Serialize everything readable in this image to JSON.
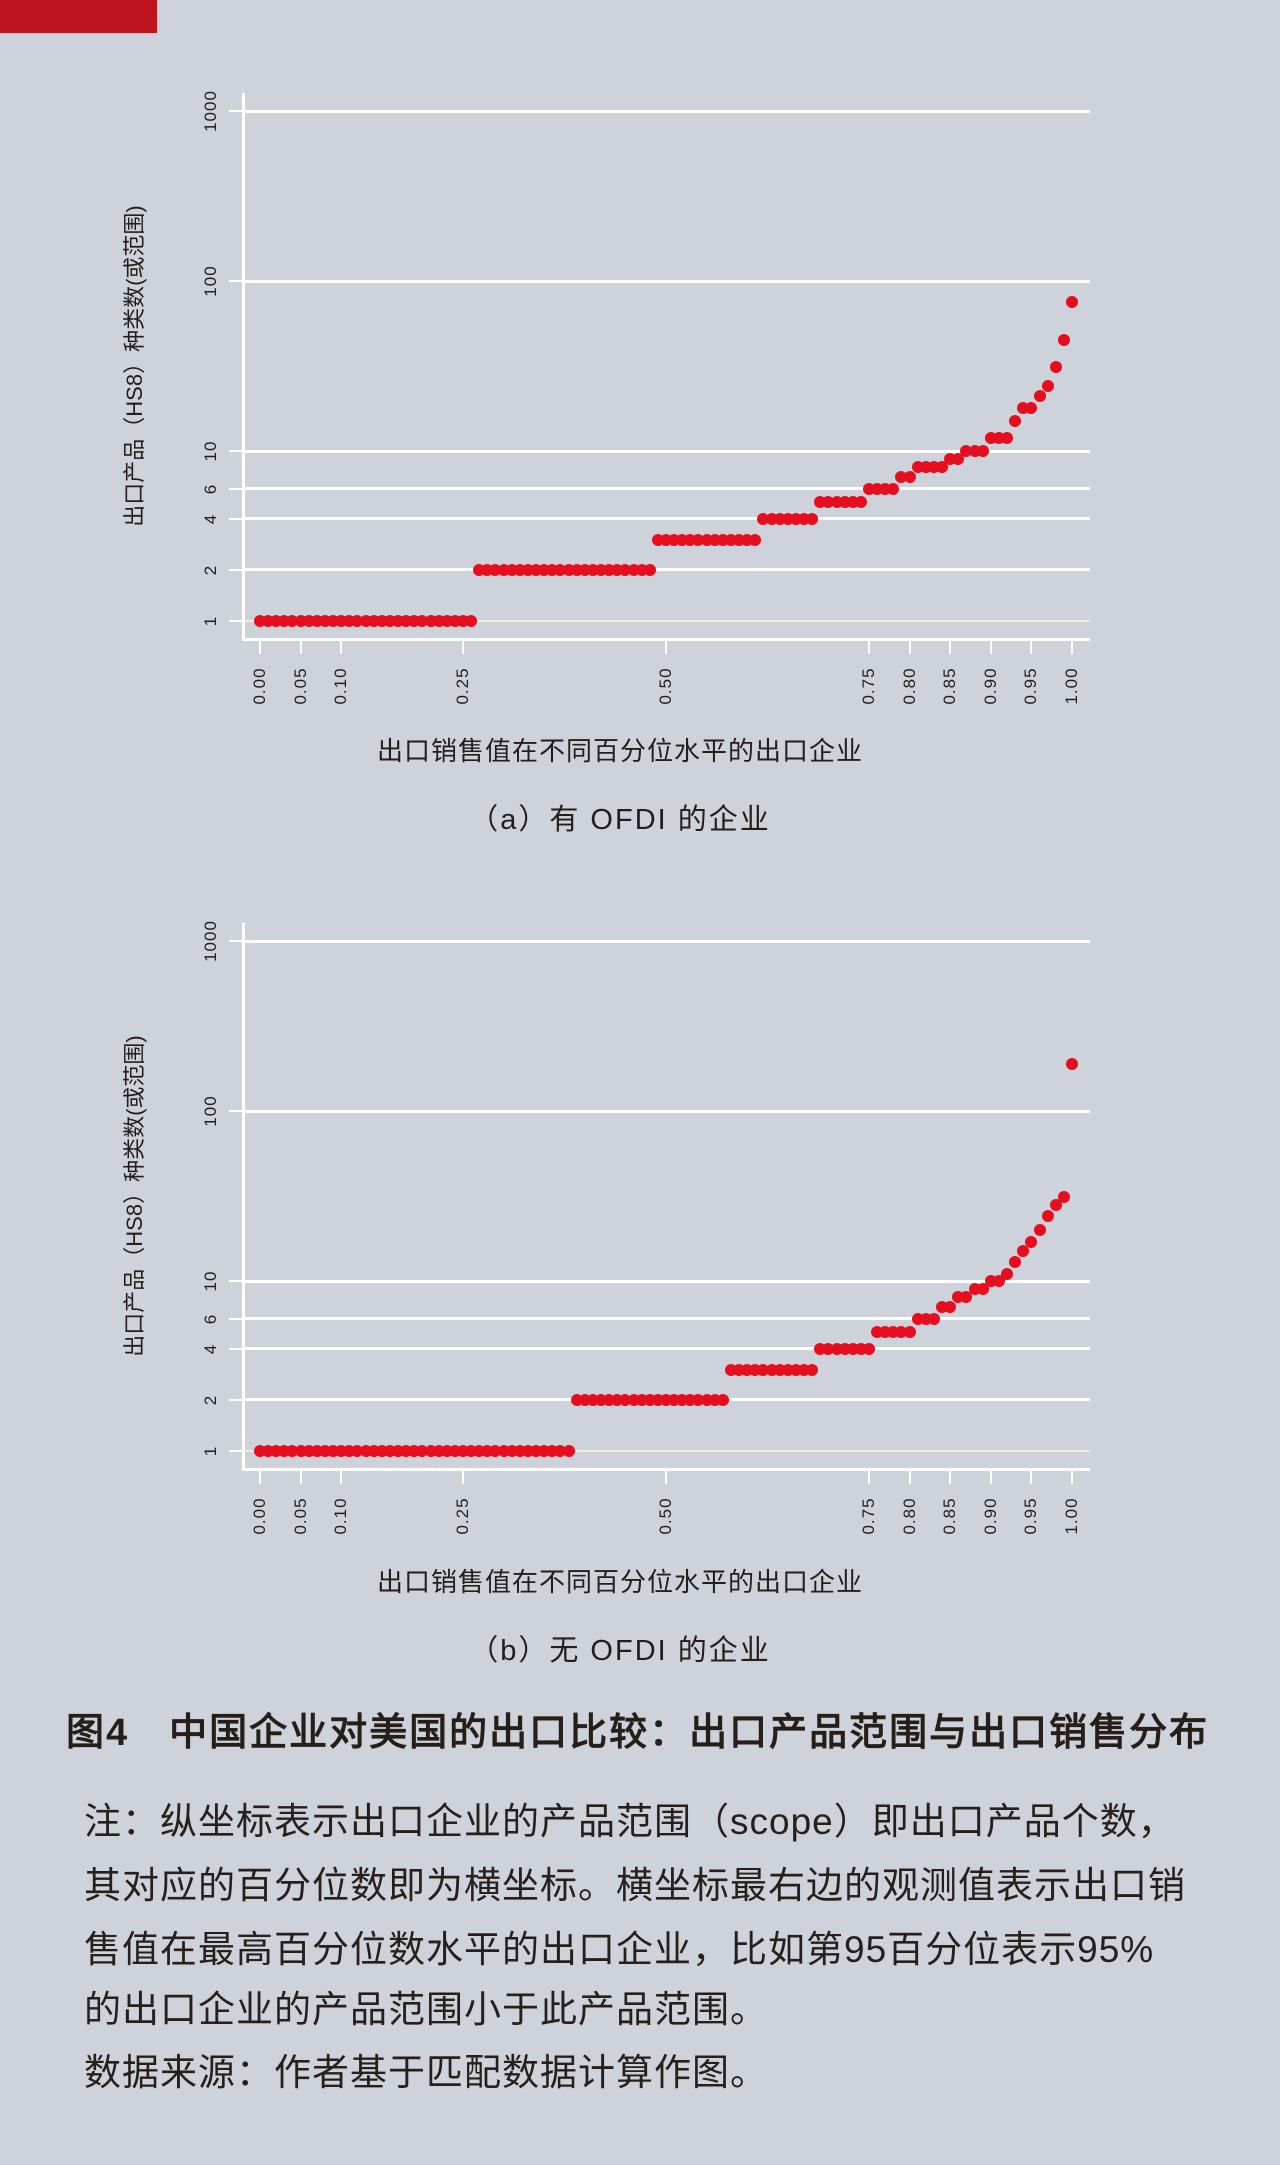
{
  "page": {
    "background_color": "#cdd2db",
    "accent_bar_color": "#bf141f",
    "text_color": "#281f1b"
  },
  "figure": {
    "title": "图4　中国企业对美国的出口比较：出口产品范围与出口销售分布",
    "note_lines": [
      "注：纵坐标表示出口企业的产品范围（scope）即出口产品个数，",
      "其对应的百分位数即为横坐标。横坐标最右边的观测值表示出口销",
      "售值在最高百分位数水平的出口企业，比如第95百分位表示95%",
      "的出口企业的产品范围小于此产品范围。",
      "数据来源：作者基于匹配数据计算作图。"
    ]
  },
  "chart_data": [
    {
      "type": "scatter",
      "caption": "（a）有 OFDI 的企业",
      "xlabel": "出口销售值在不同百分位水平的出口企业",
      "ylabel": "出口产品（HS8）种类数(或范围)",
      "x_ticks": [
        "0.00",
        "0.05",
        "0.10",
        "0.25",
        "0.50",
        "0.75",
        "0.80",
        "0.85",
        "0.90",
        "0.95",
        "1.00"
      ],
      "y_ticks": [
        "1",
        "2",
        "4",
        "6",
        "10",
        "100",
        "1000"
      ],
      "y_scale": "log10",
      "ylim": [
        1,
        1000
      ],
      "xlim": [
        0,
        1
      ],
      "grid": "horizontal-white",
      "dot_color": "#e60e1e",
      "percentile_step": 0.01,
      "steps_value_from_to": [
        [
          1,
          0.0,
          0.26
        ],
        [
          2,
          0.27,
          0.48
        ],
        [
          3,
          0.49,
          0.61
        ],
        [
          4,
          0.62,
          0.68
        ],
        [
          5,
          0.69,
          0.74
        ],
        [
          6,
          0.75,
          0.78
        ],
        [
          7,
          0.79,
          0.8
        ],
        [
          8,
          0.81,
          0.84
        ],
        [
          9,
          0.85,
          0.86
        ],
        [
          10,
          0.87,
          0.89
        ],
        [
          12,
          0.9,
          0.92
        ],
        [
          15,
          0.93,
          0.93
        ],
        [
          18,
          0.94,
          0.95
        ],
        [
          21,
          0.96,
          0.96
        ],
        [
          24,
          0.97,
          0.97
        ],
        [
          31,
          0.98,
          0.98
        ],
        [
          45,
          0.99,
          0.99
        ],
        [
          75,
          1.0,
          1.0
        ]
      ]
    },
    {
      "type": "scatter",
      "caption": "（b）无 OFDI 的企业",
      "xlabel": "出口销售值在不同百分位水平的出口企业",
      "ylabel": "出口产品（HS8）种类数(或范围)",
      "x_ticks": [
        "0.00",
        "0.05",
        "0.10",
        "0.25",
        "0.50",
        "0.75",
        "0.80",
        "0.85",
        "0.90",
        "0.95",
        "1.00"
      ],
      "y_ticks": [
        "1",
        "2",
        "4",
        "6",
        "10",
        "100",
        "1000"
      ],
      "y_scale": "log10",
      "ylim": [
        1,
        1000
      ],
      "xlim": [
        0,
        1
      ],
      "grid": "horizontal-white",
      "dot_color": "#e60e1e",
      "percentile_step": 0.01,
      "steps_value_from_to": [
        [
          1,
          0.0,
          0.38
        ],
        [
          2,
          0.39,
          0.57
        ],
        [
          3,
          0.58,
          0.68
        ],
        [
          4,
          0.69,
          0.75
        ],
        [
          5,
          0.76,
          0.8
        ],
        [
          6,
          0.81,
          0.83
        ],
        [
          7,
          0.84,
          0.85
        ],
        [
          8,
          0.86,
          0.87
        ],
        [
          9,
          0.88,
          0.89
        ],
        [
          10,
          0.9,
          0.91
        ],
        [
          11,
          0.92,
          0.92
        ],
        [
          13,
          0.93,
          0.93
        ],
        [
          15,
          0.94,
          0.94
        ],
        [
          17,
          0.95,
          0.95
        ],
        [
          20,
          0.96,
          0.96
        ],
        [
          24,
          0.97,
          0.97
        ],
        [
          28,
          0.98,
          0.98
        ],
        [
          31,
          0.99,
          0.99
        ],
        [
          190,
          1.0,
          1.0
        ]
      ]
    }
  ]
}
